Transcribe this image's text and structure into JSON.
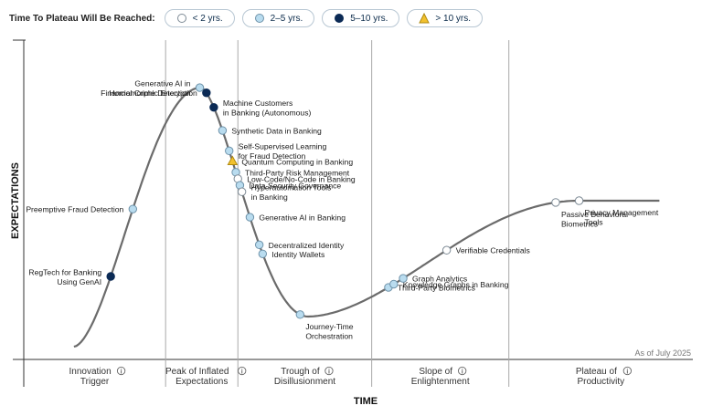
{
  "legend": {
    "title": "Time To Plateau Will Be Reached:",
    "items": [
      {
        "key": "lt2",
        "label": "< 2 yrs.",
        "fill": "#ffffff",
        "stroke": "#7d8a95",
        "shape": "circle"
      },
      {
        "key": "2to5",
        "label": "2–5 yrs.",
        "fill": "#b9dcef",
        "stroke": "#6f93aa",
        "shape": "circle"
      },
      {
        "key": "5to10",
        "label": "5–10 yrs.",
        "fill": "#0b2a55",
        "stroke": "#0b2a55",
        "shape": "circle"
      },
      {
        "key": "gt10",
        "label": "> 10 yrs.",
        "fill": "#f2c12e",
        "stroke": "#b08a10",
        "shape": "triangle"
      }
    ]
  },
  "chart_data": {
    "type": "scatter",
    "title": "",
    "xlabel": "TIME",
    "ylabel": "EXPECTATIONS",
    "as_of": "As of July 2025",
    "phases": [
      {
        "line1": "Innovation",
        "line2": "Trigger"
      },
      {
        "line1": "Peak of Inflated",
        "line2": "Expectations"
      },
      {
        "line1": "Trough of",
        "line2": "Disillusionment"
      },
      {
        "line1": "Slope of",
        "line2": "Enlightenment"
      },
      {
        "line1": "Plateau of",
        "line2": "Productivity"
      }
    ],
    "phase_boundaries_t": [
      0.212,
      0.32,
      0.52,
      0.725
    ],
    "curve_t_range": [
      0.075,
      0.95
    ],
    "series": [
      {
        "name": "RegTech for Banking Using GenAI",
        "lines": [
          "RegTech for Banking",
          "Using GenAI"
        ],
        "t": 0.13,
        "plateau": "5to10",
        "side": "left"
      },
      {
        "name": "Preemptive Fraud Detection",
        "lines": [
          "Preemptive Fraud Detection"
        ],
        "t": 0.163,
        "plateau": "2to5",
        "side": "left"
      },
      {
        "name": "Generative AI in Financial Crime Detection",
        "lines": [
          "Generative AI in",
          "Financial Crime Detection"
        ],
        "t": 0.263,
        "plateau": "2to5",
        "side": "left"
      },
      {
        "name": "Homomorphic Encryption",
        "lines": [
          "Homomorphic Encryption"
        ],
        "t": 0.273,
        "plateau": "5to10",
        "side": "left"
      },
      {
        "name": "Machine Customers in Banking (Autonomous)",
        "lines": [
          "Machine Customers",
          "in Banking (Autonomous)"
        ],
        "t": 0.284,
        "plateau": "5to10",
        "side": "right"
      },
      {
        "name": "Synthetic Data in Banking",
        "lines": [
          "Synthetic Data in Banking"
        ],
        "t": 0.297,
        "plateau": "2to5",
        "side": "right"
      },
      {
        "name": "Self-Supervised Learning for Fraud Detection",
        "lines": [
          "Self-Supervised Learning",
          "for Fraud Detection"
        ],
        "t": 0.307,
        "plateau": "2to5",
        "side": "right"
      },
      {
        "name": "Quantum Computing in Banking",
        "lines": [
          "Quantum Computing in Banking"
        ],
        "t": 0.312,
        "plateau": "gt10",
        "side": "right"
      },
      {
        "name": "Third-Party Risk Management",
        "lines": [
          "Third-Party Risk Management"
        ],
        "t": 0.317,
        "plateau": "2to5",
        "side": "right"
      },
      {
        "name": "Low-Code/No-Code in Banking",
        "lines": [
          "Low-Code/No-Code in Banking"
        ],
        "t": 0.32,
        "plateau": "lt2",
        "side": "right"
      },
      {
        "name": "Data Security Governance",
        "lines": [
          "Data Security Governance"
        ],
        "t": 0.323,
        "plateau": "2to5",
        "side": "right"
      },
      {
        "name": "Hyperautomation Tools in Banking",
        "lines": [
          "Hyperautomation Tools",
          "in Banking"
        ],
        "t": 0.326,
        "plateau": "lt2",
        "side": "right"
      },
      {
        "name": "Generative AI in Banking",
        "lines": [
          "Generative AI in Banking"
        ],
        "t": 0.338,
        "plateau": "2to5",
        "side": "right"
      },
      {
        "name": "Decentralized Identity",
        "lines": [
          "Decentralized Identity"
        ],
        "t": 0.352,
        "plateau": "2to5",
        "side": "right"
      },
      {
        "name": "Identity Wallets",
        "lines": [
          "Identity Wallets"
        ],
        "t": 0.357,
        "plateau": "2to5",
        "side": "right"
      },
      {
        "name": "Journey-Time Orchestration",
        "lines": [
          "Journey-Time",
          "Orchestration"
        ],
        "t": 0.413,
        "plateau": "2to5",
        "side": "below"
      },
      {
        "name": "Third-Party Biometrics",
        "lines": [
          "Third-Party Biometrics"
        ],
        "t": 0.545,
        "plateau": "2to5",
        "side": "right"
      },
      {
        "name": "Knowledge Graphs in Banking",
        "lines": [
          "Knowledge Graphs in Banking"
        ],
        "t": 0.553,
        "plateau": "2to5",
        "side": "right"
      },
      {
        "name": "Graph Analytics",
        "lines": [
          "Graph Analytics"
        ],
        "t": 0.567,
        "plateau": "2to5",
        "side": "right"
      },
      {
        "name": "Verifiable Credentials",
        "lines": "Verifiable Credentials",
        "t": 0.632,
        "plateau": "lt2",
        "side": "right"
      },
      {
        "name": "Passive Behavioral Biometrics",
        "lines": [
          "Passive Behavioral",
          "Biometrics"
        ],
        "t": 0.795,
        "plateau": "lt2",
        "side": "below"
      },
      {
        "name": "Privacy Management Tools",
        "lines": [
          "Privacy Management",
          "Tools"
        ],
        "t": 0.83,
        "plateau": "lt2",
        "side": "below"
      }
    ]
  }
}
